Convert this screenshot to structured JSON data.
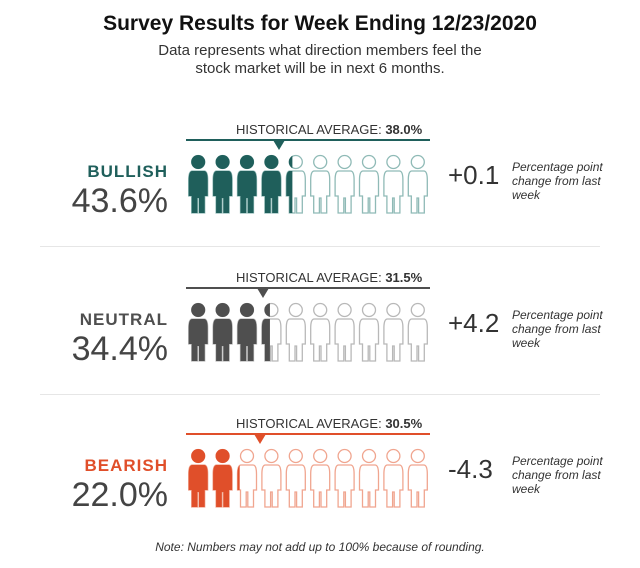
{
  "title": "Survey Results for Week Ending 12/23/2020",
  "subtitle": "Data represents what direction members feel the stock market will be in next 6 months.",
  "note": "Note: Numbers may not add up to 100% because of rounding.",
  "chart_data": {
    "type": "pictograph",
    "icons_per_row": 10,
    "categories": [
      {
        "name": "BULLISH",
        "percent_label": "43.6%",
        "value": 43.6,
        "historical_label": "HISTORICAL AVERAGE:",
        "historical_value_label": "38.0%",
        "historical_value": 38.0,
        "change_label": "+0.1",
        "change_note": "Percentage point change from last week",
        "color": "#1f5f5b",
        "light_color": "#8fbab6"
      },
      {
        "name": "NEUTRAL",
        "percent_label": "34.4%",
        "value": 34.4,
        "historical_label": "HISTORICAL AVERAGE:",
        "historical_value_label": "31.5%",
        "historical_value": 31.5,
        "change_label": "+4.2",
        "change_note": "Percentage point change from last week",
        "color": "#4f4f4f",
        "light_color": "#b8b8b8"
      },
      {
        "name": "BEARISH",
        "percent_label": "22.0%",
        "value": 22.0,
        "historical_label": "HISTORICAL AVERAGE:",
        "historical_value_label": "30.5%",
        "historical_value": 30.5,
        "change_label": "-4.3",
        "change_note": "Percentage point change from last week",
        "color": "#e04f2a",
        "light_color": "#f0a58f"
      }
    ]
  }
}
